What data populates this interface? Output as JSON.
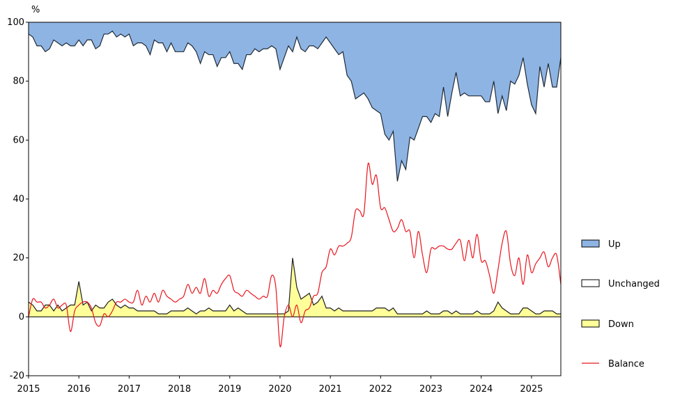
{
  "chart_data": {
    "type": "area",
    "y_unit": "%",
    "ylim": [
      -20,
      100
    ],
    "y_ticks": [
      -20,
      0,
      20,
      40,
      60,
      80,
      100
    ],
    "x_ticks": [
      "2015",
      "2016",
      "2017",
      "2018",
      "2019",
      "2020",
      "2021",
      "2022",
      "2023",
      "2024",
      "2025"
    ],
    "xlim": [
      2015.0,
      2025.583
    ],
    "grid": false,
    "legend_position": "right",
    "legend": [
      "Up",
      "Unchanged",
      "Down",
      "Balance"
    ],
    "colors": {
      "up": "#8eb4e3",
      "unchanged": "#ffffff",
      "down": "#ffff99",
      "balance": "#e8141c",
      "outline": "#000000"
    },
    "x": [
      "2015-01",
      "2015-02",
      "2015-03",
      "2015-04",
      "2015-05",
      "2015-06",
      "2015-07",
      "2015-08",
      "2015-09",
      "2015-10",
      "2015-11",
      "2015-12",
      "2016-01",
      "2016-02",
      "2016-03",
      "2016-04",
      "2016-05",
      "2016-06",
      "2016-07",
      "2016-08",
      "2016-09",
      "2016-10",
      "2016-11",
      "2016-12",
      "2017-01",
      "2017-02",
      "2017-03",
      "2017-04",
      "2017-05",
      "2017-06",
      "2017-07",
      "2017-08",
      "2017-09",
      "2017-10",
      "2017-11",
      "2017-12",
      "2018-01",
      "2018-02",
      "2018-03",
      "2018-04",
      "2018-05",
      "2018-06",
      "2018-07",
      "2018-08",
      "2018-09",
      "2018-10",
      "2018-11",
      "2018-12",
      "2019-01",
      "2019-02",
      "2019-03",
      "2019-04",
      "2019-05",
      "2019-06",
      "2019-07",
      "2019-08",
      "2019-09",
      "2019-10",
      "2019-11",
      "2019-12",
      "2020-01",
      "2020-02",
      "2020-03",
      "2020-04",
      "2020-05",
      "2020-06",
      "2020-07",
      "2020-08",
      "2020-09",
      "2020-10",
      "2020-11",
      "2020-12",
      "2021-01",
      "2021-02",
      "2021-03",
      "2021-04",
      "2021-05",
      "2021-06",
      "2021-07",
      "2021-08",
      "2021-09",
      "2021-10",
      "2021-11",
      "2021-12",
      "2022-01",
      "2022-02",
      "2022-03",
      "2022-04",
      "2022-05",
      "2022-06",
      "2022-07",
      "2022-08",
      "2022-09",
      "2022-10",
      "2022-11",
      "2022-12",
      "2023-01",
      "2023-02",
      "2023-03",
      "2023-04",
      "2023-05",
      "2023-06",
      "2023-07",
      "2023-08",
      "2023-09",
      "2023-10",
      "2023-11",
      "2023-12",
      "2024-01",
      "2024-02",
      "2024-03",
      "2024-04",
      "2024-05",
      "2024-06",
      "2024-07",
      "2024-08",
      "2024-09",
      "2024-10",
      "2024-11",
      "2024-12",
      "2025-01",
      "2025-02",
      "2025-03",
      "2025-04",
      "2025-05",
      "2025-06",
      "2025-07",
      "2025-08"
    ],
    "series": [
      {
        "name": "Up",
        "values": [
          96,
          95,
          92,
          92,
          90,
          91,
          94,
          93,
          92,
          93,
          92,
          92,
          94,
          92,
          94,
          94,
          91,
          92,
          96,
          96,
          97,
          95,
          96,
          95,
          96,
          92,
          93,
          93,
          92,
          89,
          94,
          93,
          93,
          90,
          93,
          90,
          90,
          90,
          93,
          92,
          90,
          86,
          90,
          89,
          89,
          85,
          88,
          88,
          90,
          86,
          86,
          84,
          89,
          89,
          91,
          90,
          91,
          91,
          92,
          91,
          84,
          88,
          92,
          90,
          95,
          91,
          90,
          92,
          92,
          91,
          93,
          95,
          93,
          91,
          89,
          90,
          82,
          80,
          74,
          75,
          76,
          74,
          71,
          70,
          69,
          62,
          60,
          63,
          46,
          53,
          50,
          61,
          60,
          64,
          68,
          68,
          66,
          69,
          68,
          78,
          68,
          76,
          83,
          75,
          76,
          75,
          75,
          75,
          75,
          73,
          73,
          80,
          69,
          75,
          70,
          80,
          79,
          82,
          88,
          79,
          72,
          69,
          85,
          78,
          86,
          78,
          78,
          88
        ]
      },
      {
        "name": "Down",
        "values": [
          5,
          4,
          2,
          2,
          4,
          4,
          2,
          4,
          2,
          3,
          4,
          4,
          12,
          4,
          5,
          2,
          4,
          3,
          3,
          5,
          6,
          4,
          3,
          4,
          3,
          3,
          2,
          2,
          2,
          2,
          2,
          1,
          1,
          1,
          2,
          2,
          2,
          2,
          3,
          2,
          1,
          2,
          2,
          3,
          2,
          2,
          2,
          2,
          4,
          2,
          3,
          2,
          1,
          1,
          1,
          1,
          1,
          1,
          1,
          1,
          1,
          1,
          2,
          20,
          10,
          6,
          7,
          8,
          4,
          5,
          7,
          3,
          3,
          2,
          3,
          2,
          2,
          2,
          2,
          2,
          2,
          2,
          2,
          3,
          3,
          3,
          2,
          3,
          1,
          1,
          1,
          1,
          1,
          1,
          1,
          2,
          1,
          1,
          1,
          2,
          2,
          1,
          2,
          1,
          1,
          1,
          1,
          2,
          1,
          1,
          1,
          2,
          5,
          3,
          2,
          1,
          1,
          1,
          3,
          3,
          2,
          1,
          1,
          2,
          2,
          2,
          1,
          1
        ]
      },
      {
        "name": "Balance",
        "values": [
          0,
          6,
          5,
          5,
          3,
          4,
          6,
          3,
          4,
          4,
          -5,
          2,
          4,
          5,
          5,
          3,
          -2,
          -3,
          1,
          0,
          2,
          5,
          5,
          6,
          5,
          5,
          9,
          4,
          7,
          5,
          8,
          5,
          9,
          7,
          6,
          5,
          6,
          7,
          11,
          8,
          10,
          8,
          13,
          7,
          9,
          8,
          11,
          13,
          14,
          9,
          8,
          7,
          9,
          8,
          7,
          6,
          7,
          7,
          14,
          10,
          -10,
          0,
          4,
          0,
          4,
          -2,
          2,
          3,
          7,
          8,
          15,
          17,
          23,
          21,
          24,
          24,
          25,
          27,
          36,
          36,
          35,
          52,
          45,
          48,
          37,
          37,
          33,
          29,
          30,
          33,
          29,
          29,
          20,
          29,
          21,
          15,
          23,
          23,
          24,
          24,
          23,
          23,
          25,
          26,
          19,
          26,
          20,
          28,
          19,
          19,
          14,
          8,
          16,
          25,
          29,
          18,
          14,
          20,
          11,
          21,
          15,
          18,
          20,
          22,
          17,
          20,
          21,
          11
        ]
      }
    ]
  }
}
